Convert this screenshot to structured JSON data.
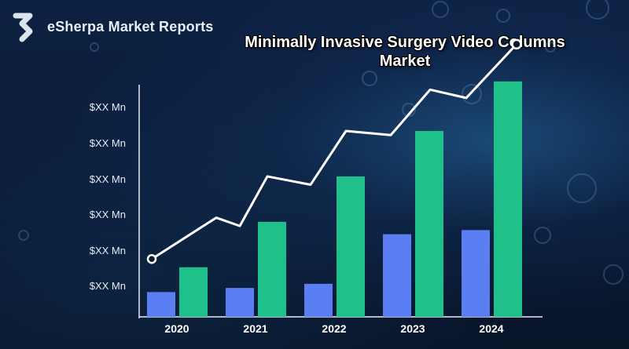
{
  "brand": {
    "name": "eSherpa Market Reports",
    "logo_icon": "s-logo-icon"
  },
  "chart_data": {
    "type": "bar",
    "title": "Minimally Invasive Surgery Video Columns Market",
    "categories": [
      "2020",
      "2021",
      "2022",
      "2023",
      "2024"
    ],
    "y_tick_labels": [
      "$XX Mn",
      "$XX Mn",
      "$XX Mn",
      "$XX Mn",
      "$XX Mn",
      "$XX Mn"
    ],
    "ylim": [
      0,
      6
    ],
    "series": [
      {
        "values": [
          0.6,
          0.7,
          0.8,
          2.0,
          2.1
        ],
        "color": "#5b7ff2",
        "kind": "bar"
      },
      {
        "values": [
          1.2,
          2.3,
          3.4,
          4.5,
          5.7
        ],
        "color": "#1fc08a",
        "kind": "bar"
      }
    ],
    "trend_line": {
      "values": [
        1.4,
        2.4,
        2.2,
        3.4,
        3.2,
        4.5,
        4.4,
        5.5,
        5.3,
        6.6
      ],
      "color": "#ffffff"
    },
    "grid": false,
    "legend": "none"
  }
}
